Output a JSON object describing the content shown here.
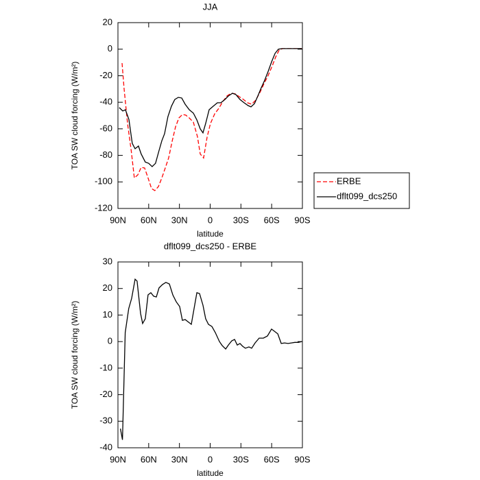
{
  "chart_data": [
    {
      "type": "line",
      "title": "JJA",
      "x_label": "latitude",
      "y_label": "TOA SW cloud forcing (W/m²)",
      "xlim": [
        90,
        -90
      ],
      "xticks": [
        {
          "value": 90,
          "label": "90N"
        },
        {
          "value": 60,
          "label": "60N"
        },
        {
          "value": 30,
          "label": "30N"
        },
        0,
        {
          "value": -30,
          "label": "30S"
        },
        {
          "value": -60,
          "label": "60S"
        },
        {
          "value": -90,
          "label": "90S"
        }
      ],
      "ylim": [
        -120,
        20
      ],
      "yticks": [
        20,
        0,
        -20,
        -40,
        -60,
        -80,
        -100,
        -120
      ],
      "legend": "right",
      "series": [
        {
          "name": "ERBE",
          "color": "#ff0000",
          "dash": true,
          "x": [
            86,
            84,
            80.6,
            77,
            74,
            70.6,
            67.3,
            64,
            60.6,
            57.2,
            54,
            50.5,
            47.2,
            43.8,
            40.5,
            37,
            33.8,
            30.5,
            27,
            23.8,
            20.4,
            16.4,
            12.4,
            9.7,
            6.4,
            3,
            -0.3,
            -4.4,
            -8.4,
            -12.4,
            -16.4,
            -20.4,
            -24.4,
            -28.4,
            -32.5,
            -36.5,
            -40.5,
            -44.5,
            -48.5,
            -52.5,
            -56.6,
            -60.6,
            -64,
            -67.3,
            -70.6,
            -76,
            -82.8,
            -89.4
          ],
          "values": [
            -10.5,
            -30,
            -56,
            -76.6,
            -97,
            -94.7,
            -89,
            -89.5,
            -97,
            -105,
            -106.5,
            -103.5,
            -97,
            -89.5,
            -81.8,
            -69,
            -58.5,
            -51.8,
            -49.2,
            -49.7,
            -51.8,
            -55,
            -66,
            -79,
            -82,
            -66.3,
            -56,
            -48.7,
            -44.6,
            -39.4,
            -35.3,
            -33.2,
            -33.7,
            -35.8,
            -37.9,
            -40.4,
            -41.5,
            -38.4,
            -32.7,
            -26,
            -19.8,
            -12.5,
            -5.8,
            -0.7,
            0.4,
            0.4,
            0.4,
            0.4
          ]
        },
        {
          "name": "dflt099_dcs250",
          "color": "#000000",
          "dash": false,
          "x": [
            88.7,
            85.3,
            82.7,
            79.3,
            76,
            73.3,
            70,
            67.3,
            63.3,
            60,
            56.6,
            53.3,
            50,
            47.2,
            44.5,
            41.2,
            37.8,
            34.5,
            31.1,
            27.8,
            24.4,
            20.4,
            16.4,
            13,
            9.7,
            7,
            4.4,
            1,
            -3,
            -7,
            -10.4,
            -14.4,
            -17.7,
            -21.8,
            -25.1,
            -29.1,
            -33.1,
            -37.1,
            -39.8,
            -43.2,
            -46.5,
            -49.9,
            -53.2,
            -56.6,
            -60,
            -63.3,
            -66.6,
            -70,
            -76,
            -82.8,
            -89.4
          ],
          "values": [
            -44,
            -46.6,
            -45.6,
            -53,
            -71,
            -75,
            -73,
            -79,
            -85,
            -86,
            -88.5,
            -86,
            -76.6,
            -69,
            -63.7,
            -50.8,
            -43,
            -37.9,
            -36.3,
            -36.8,
            -41.5,
            -45.6,
            -48.2,
            -53.3,
            -60,
            -63,
            -56,
            -45.6,
            -43,
            -40.4,
            -40.4,
            -37.9,
            -35.3,
            -33.2,
            -34.2,
            -37.9,
            -40.4,
            -42.5,
            -43.5,
            -41,
            -35.3,
            -29,
            -23.4,
            -16.7,
            -9.4,
            -3.2,
            0,
            0.4,
            0.4,
            0.4,
            0.4
          ]
        }
      ]
    },
    {
      "type": "line",
      "title": "dflt099_dcs250 - ERBE",
      "x_label": "latitude",
      "y_label": "TOA SW cloud forcing (W/m²)",
      "xlim": [
        90,
        -90
      ],
      "xticks": [
        {
          "value": 90,
          "label": "90N"
        },
        {
          "value": 60,
          "label": "60N"
        },
        {
          "value": 30,
          "label": "30N"
        },
        0,
        {
          "value": -30,
          "label": "30S"
        },
        {
          "value": -60,
          "label": "60S"
        },
        {
          "value": -90,
          "label": "90S"
        }
      ],
      "ylim": [
        -40,
        30
      ],
      "yticks": [
        30,
        20,
        10,
        0,
        -10,
        -20,
        -30,
        -40
      ],
      "color": "#000000",
      "x": [
        87.6,
        85.6,
        82.9,
        79.5,
        76.6,
        73.3,
        71.3,
        67.9,
        65.9,
        63.3,
        60.6,
        57.9,
        55.2,
        52.5,
        49.9,
        46.5,
        43.2,
        39.8,
        36.5,
        33.1,
        29.8,
        27.1,
        24.4,
        21.1,
        18.4,
        15.7,
        13,
        10.4,
        7,
        4.4,
        1.7,
        -1.7,
        -5,
        -9,
        -11.7,
        -15.1,
        -17.7,
        -21.1,
        -23.8,
        -26.4,
        -29.1,
        -31.8,
        -34.4,
        -37.8,
        -40.5,
        -43.8,
        -47.8,
        -51.9,
        -55.9,
        -59.9,
        -62.6,
        -66,
        -69.3,
        -72.6,
        -76,
        -79.3,
        -82.6,
        -86,
        -89.3
      ],
      "values": [
        -32.8,
        -37,
        3.4,
        12.4,
        16.3,
        23.5,
        22.8,
        10.6,
        6.8,
        8.6,
        17.6,
        18.4,
        17.1,
        16.8,
        20.2,
        21.5,
        22.3,
        21.7,
        17.6,
        15,
        13.2,
        8,
        8.3,
        7.3,
        6.5,
        12.4,
        18.4,
        18.1,
        13.7,
        8.6,
        6.5,
        5.7,
        3.4,
        0,
        -1.5,
        -2.8,
        -1.3,
        0.3,
        0.8,
        -1.3,
        -0.7,
        -1.8,
        -2.5,
        -2,
        -2.5,
        -0.5,
        1.3,
        1.3,
        2.1,
        4.7,
        3.9,
        2.9,
        -0.7,
        -0.5,
        -0.7,
        -0.5,
        -0.3,
        -0.3,
        0
      ]
    }
  ]
}
